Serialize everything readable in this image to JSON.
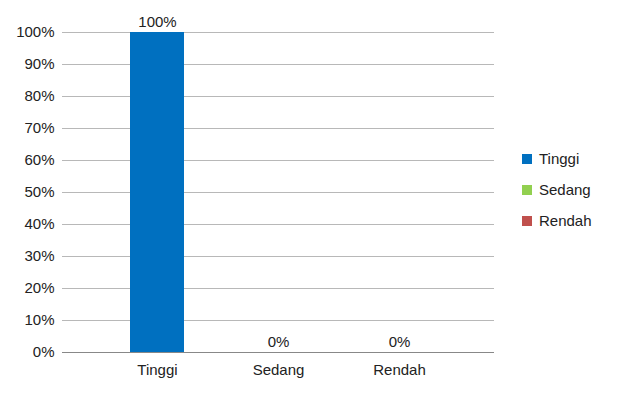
{
  "chart_data": {
    "type": "bar",
    "categories": [
      "Tinggi",
      "Sedang",
      "Rendah"
    ],
    "values": [
      100,
      0,
      0
    ],
    "value_labels": [
      "100%",
      "0%",
      "0%"
    ],
    "colors": [
      "#0070c0",
      "#92d050",
      "#c0504d"
    ],
    "ylim": [
      0,
      100
    ],
    "yticks": [
      {
        "value": 0,
        "label": "0%"
      },
      {
        "value": 10,
        "label": "10%"
      },
      {
        "value": 20,
        "label": "20%"
      },
      {
        "value": 30,
        "label": "30%"
      },
      {
        "value": 40,
        "label": "40%"
      },
      {
        "value": 50,
        "label": "50%"
      },
      {
        "value": 60,
        "label": "60%"
      },
      {
        "value": 70,
        "label": "70%"
      },
      {
        "value": 80,
        "label": "80%"
      },
      {
        "value": 90,
        "label": "90%"
      },
      {
        "value": 100,
        "label": "100%"
      }
    ],
    "grid": true,
    "data_labels": true,
    "legend": "right"
  }
}
